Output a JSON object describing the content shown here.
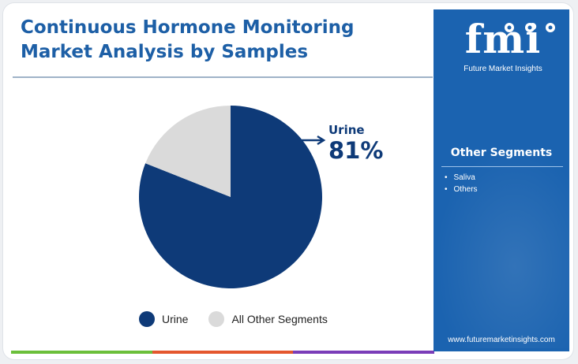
{
  "title": {
    "line1": "Continuous Hormone Monitoring",
    "line2": "Market Analysis by Samples"
  },
  "chart_data": {
    "type": "pie",
    "categories": [
      "Urine",
      "All Other Segments"
    ],
    "values": [
      81,
      19
    ],
    "unit": "%",
    "colors": [
      "#0e3a78",
      "#dadada"
    ],
    "legend_position": "bottom",
    "annotation": {
      "label": "Urine",
      "value": "81%"
    }
  },
  "legend": [
    {
      "label": "Urine",
      "color": "#0e3a78"
    },
    {
      "label": "All Other Segments",
      "color": "#dadada"
    }
  ],
  "side_panel": {
    "brand": "fmi",
    "brand_caption": "Future Market Insights",
    "heading": "Other Segments",
    "items": [
      "Saliva",
      "Others"
    ],
    "website": "www.futuremarketinsights.com"
  },
  "colors": {
    "title": "#1d5fa6",
    "panel": "#1b63b0",
    "dark_navy": "#0e3a78",
    "bottom_bar": [
      "#6bbf3a",
      "#e4572e",
      "#7a3db8"
    ]
  }
}
